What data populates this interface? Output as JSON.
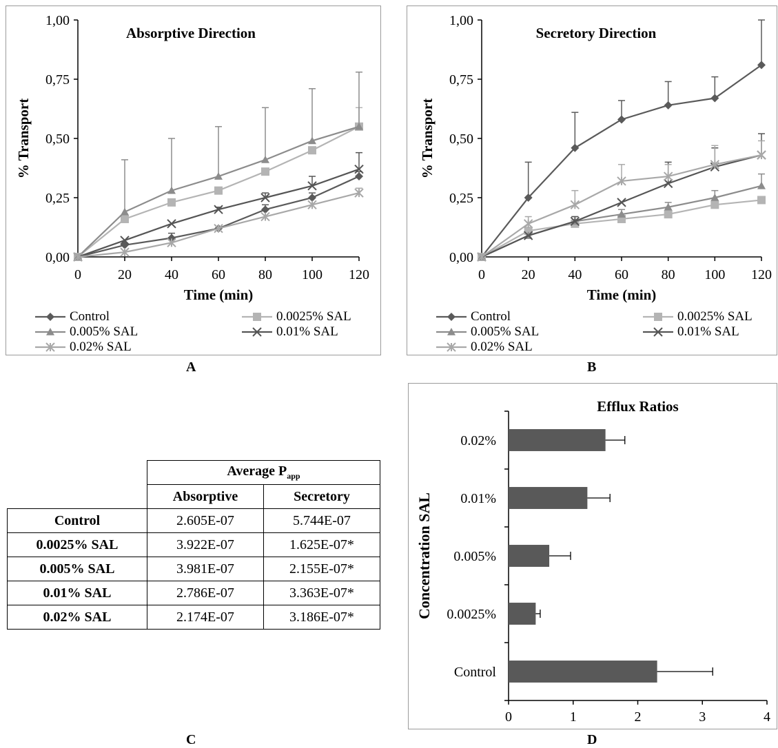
{
  "panel_labels": {
    "a": "A",
    "b": "B",
    "c": "C",
    "d": "D"
  },
  "legend": [
    {
      "name": "Control",
      "marker": "diamond",
      "color": "#5a5a5a"
    },
    {
      "name": "0.0025% SAL",
      "marker": "square",
      "color": "#b4b4b4"
    },
    {
      "name": "0.005% SAL",
      "marker": "triangle",
      "color": "#8c8c8c"
    },
    {
      "name": "0.01% SAL",
      "marker": "x",
      "color": "#555555"
    },
    {
      "name": "0.02% SAL",
      "marker": "star",
      "color": "#a8a8a8"
    }
  ],
  "chart_data": [
    {
      "type": "line",
      "title": "Absorptive Direction",
      "xlabel": "Time (min)",
      "ylabel": "% Transport",
      "x": [
        0,
        20,
        40,
        60,
        80,
        100,
        120
      ],
      "xlim": [
        0,
        120
      ],
      "ylim": [
        0,
        1
      ],
      "xticks": [
        "0",
        "20",
        "40",
        "60",
        "80",
        "100",
        "120"
      ],
      "yticks": [
        "0,00",
        "0,25",
        "0,50",
        "0,75",
        "1,00"
      ],
      "legend_position": "bottom",
      "series": [
        {
          "name": "Control",
          "values": [
            0,
            0.05,
            0.08,
            0.12,
            0.2,
            0.25,
            0.34
          ],
          "errors": [
            0,
            0,
            0.02,
            0,
            0.02,
            0.02,
            0.02
          ]
        },
        {
          "name": "0.0025% SAL",
          "values": [
            0,
            0.16,
            0.23,
            0.28,
            0.36,
            0.45,
            0.55
          ],
          "errors": [
            0,
            0,
            0,
            0,
            0,
            0,
            0.08
          ]
        },
        {
          "name": "0.005% SAL",
          "values": [
            0,
            0.19,
            0.28,
            0.34,
            0.41,
            0.49,
            0.55
          ],
          "errors": [
            0,
            0.22,
            0.22,
            0.21,
            0.22,
            0.22,
            0.23
          ]
        },
        {
          "name": "0.01% SAL",
          "values": [
            0,
            0.07,
            0.14,
            0.2,
            0.25,
            0.3,
            0.37
          ],
          "errors": [
            0,
            0,
            0,
            0.01,
            0.02,
            0.04,
            0.07
          ]
        },
        {
          "name": "0.02% SAL",
          "values": [
            0,
            0.02,
            0.06,
            0.12,
            0.17,
            0.22,
            0.27
          ],
          "errors": [
            0,
            0,
            0,
            0,
            0,
            0,
            0.02
          ]
        }
      ]
    },
    {
      "type": "line",
      "title": "Secretory Direction",
      "xlabel": "Time (min)",
      "ylabel": "% Transport",
      "x": [
        0,
        20,
        40,
        60,
        80,
        100,
        120
      ],
      "xlim": [
        0,
        120
      ],
      "ylim": [
        0,
        1
      ],
      "xticks": [
        "0",
        "20",
        "40",
        "60",
        "80",
        "100",
        "120"
      ],
      "yticks": [
        "0,00",
        "0,25",
        "0,50",
        "0,75",
        "1,00"
      ],
      "legend_position": "bottom",
      "series": [
        {
          "name": "Control",
          "values": [
            0,
            0.25,
            0.46,
            0.58,
            0.64,
            0.67,
            0.81
          ],
          "errors": [
            0,
            0.15,
            0.15,
            0.08,
            0.1,
            0.09,
            0.19
          ]
        },
        {
          "name": "0.0025% SAL",
          "values": [
            0,
            0.11,
            0.14,
            0.16,
            0.18,
            0.22,
            0.24
          ],
          "errors": [
            0,
            0,
            0,
            0,
            0,
            0,
            0
          ]
        },
        {
          "name": "0.005% SAL",
          "values": [
            0,
            0.09,
            0.15,
            0.18,
            0.21,
            0.25,
            0.3
          ],
          "errors": [
            0,
            0,
            0.02,
            0.02,
            0.02,
            0.03,
            0.05
          ]
        },
        {
          "name": "0.01% SAL",
          "values": [
            0,
            0.09,
            0.15,
            0.23,
            0.31,
            0.38,
            0.43
          ],
          "errors": [
            0,
            0,
            0.02,
            0,
            0.09,
            0.08,
            0.09
          ]
        },
        {
          "name": "0.02% SAL",
          "values": [
            0,
            0.14,
            0.22,
            0.32,
            0.34,
            0.39,
            0.43
          ],
          "errors": [
            0,
            0.03,
            0.06,
            0.07,
            0.05,
            0.08,
            0.06
          ]
        }
      ]
    },
    {
      "type": "bar",
      "orientation": "horizontal",
      "title": "Efflux Ratios",
      "xlabel": "",
      "ylabel": "Concentration SAL",
      "categories": [
        "Control",
        "0.0025%",
        "0.005%",
        "0.01%",
        "0.02%"
      ],
      "values": [
        2.3,
        0.42,
        0.63,
        1.22,
        1.5
      ],
      "errors": [
        0.86,
        0.07,
        0.33,
        0.35,
        0.3
      ],
      "xlim": [
        0,
        4
      ],
      "xticks": [
        "0",
        "1",
        "2",
        "3",
        "4"
      ],
      "bar_color": "#595959"
    },
    {
      "type": "table",
      "header_group": "Average P",
      "header_group_sub": "app",
      "columns": [
        "Absorptive",
        "Secretory"
      ],
      "rows": [
        {
          "label": "Control",
          "values": [
            "2.605E-07",
            "5.744E-07"
          ]
        },
        {
          "label": "0.0025% SAL",
          "values": [
            "3.922E-07",
            "1.625E-07*"
          ]
        },
        {
          "label": "0.005% SAL",
          "values": [
            "3.981E-07",
            "2.155E-07*"
          ]
        },
        {
          "label": "0.01% SAL",
          "values": [
            "2.786E-07",
            "3.363E-07*"
          ]
        },
        {
          "label": "0.02% SAL",
          "values": [
            "2.174E-07",
            "3.186E-07*"
          ]
        }
      ]
    }
  ]
}
